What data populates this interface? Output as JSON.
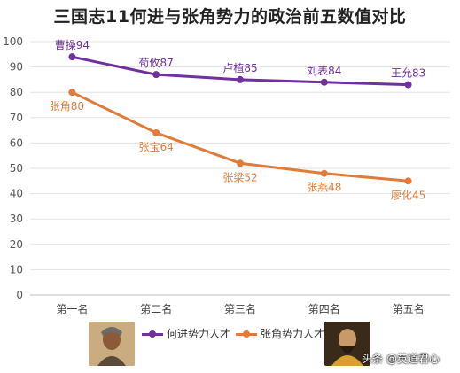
{
  "chart_data": {
    "type": "line",
    "title": "三国志11何进与张角势力的政治前五数值对比",
    "categories": [
      "第一名",
      "第二名",
      "第三名",
      "第四名",
      "第五名"
    ],
    "ylim": [
      0,
      100
    ],
    "yticks": [
      0,
      10,
      20,
      30,
      40,
      50,
      60,
      70,
      80,
      90,
      100
    ],
    "grid": true,
    "legend_position": "bottom",
    "series": [
      {
        "name": "何进势力人才",
        "color": "#7030a0",
        "values": [
          94,
          87,
          85,
          84,
          83
        ],
        "labels": [
          "曹操94",
          "荀攸87",
          "卢植85",
          "刘表84",
          "王允83"
        ]
      },
      {
        "name": "张角势力人才",
        "color": "#e07b39",
        "values": [
          80,
          64,
          52,
          48,
          45
        ],
        "labels": [
          "张角80",
          "张宝64",
          "张梁52",
          "张燕48",
          "廖化45"
        ]
      }
    ]
  },
  "watermark": "头条 @英道君心",
  "icons": {
    "portrait_left": "portrait-icon",
    "portrait_right": "portrait-icon"
  }
}
